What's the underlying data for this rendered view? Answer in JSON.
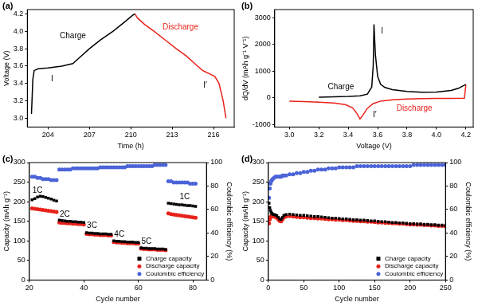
{
  "chart_data": [
    {
      "type": "line",
      "title": "(a)",
      "x_label": "Time (h)",
      "y_label": "Voltage (V)",
      "xlim": [
        202.5,
        217.5
      ],
      "xticks": [
        204,
        207,
        210,
        213,
        216
      ],
      "ylim": [
        2.9,
        4.25
      ],
      "yticks": [
        {
          "value": 3,
          "label": "3.0"
        },
        3.2,
        3.4,
        3.6,
        3.8,
        {
          "value": 4,
          "label": "4.0"
        },
        4.2
      ],
      "grid": false,
      "series": [
        {
          "name": "Charge",
          "color": "#000000",
          "line_style": "solid",
          "x": [
            202.8,
            202.9,
            203.0,
            203.3,
            204,
            205,
            205.8,
            206.3,
            207,
            207.8,
            208.7,
            209.5,
            210.1,
            210.3
          ],
          "values": [
            3.05,
            3.45,
            3.55,
            3.57,
            3.58,
            3.6,
            3.63,
            3.7,
            3.8,
            3.9,
            4.0,
            4.1,
            4.18,
            4.2
          ]
        },
        {
          "name": "Discharge",
          "color": "#e8211a",
          "line_style": "solid",
          "x": [
            210.3,
            210.5,
            211,
            211.7,
            212.5,
            213.3,
            214,
            214.7,
            215.2,
            215.6,
            216.1,
            216.4,
            216.7,
            216.9
          ],
          "values": [
            4.2,
            4.15,
            4.08,
            4.0,
            3.9,
            3.8,
            3.72,
            3.62,
            3.55,
            3.52,
            3.48,
            3.4,
            3.2,
            3.0
          ]
        }
      ],
      "annotations": [
        {
          "text": "Charge",
          "x": 205.8,
          "y": 3.95,
          "color": "#000000"
        },
        {
          "text": "Discharge",
          "x": 213.6,
          "y": 4.05,
          "color": "#e8211a"
        },
        {
          "text": "I",
          "x": 204.3,
          "y": 3.45,
          "color": "#000000"
        },
        {
          "text": "I′",
          "x": 215.4,
          "y": 3.38,
          "color": "#000000"
        }
      ]
    },
    {
      "type": "line",
      "title": "(b)",
      "x_label": "Voltage (V)",
      "y_label": "dQ/dV (mAh g⁻¹ V⁻¹)",
      "xlim": [
        2.9,
        4.25
      ],
      "xticks": [
        {
          "value": 3,
          "label": "3.0"
        },
        3.2,
        3.4,
        3.6,
        3.8,
        {
          "value": 4,
          "label": "4.0"
        },
        4.2
      ],
      "ylim": [
        -1100,
        3300
      ],
      "yticks": [
        -1000,
        0,
        1000,
        2000,
        3000
      ],
      "grid": false,
      "series": [
        {
          "name": "Charge",
          "color": "#000000",
          "line_style": "solid",
          "x": [
            3.2,
            3.3,
            3.4,
            3.48,
            3.53,
            3.56,
            3.57,
            3.575,
            3.585,
            3.6,
            3.62,
            3.65,
            3.7,
            3.8,
            3.9,
            4.0,
            4.1,
            4.15,
            4.2
          ],
          "values": [
            20,
            30,
            45,
            70,
            130,
            400,
            1200,
            2750,
            1600,
            800,
            500,
            380,
            300,
            230,
            200,
            210,
            270,
            350,
            500
          ]
        },
        {
          "name": "Discharge",
          "color": "#e8211a",
          "line_style": "solid",
          "x": [
            4.2,
            4.19,
            4.1,
            4.0,
            3.9,
            3.8,
            3.7,
            3.62,
            3.57,
            3.53,
            3.5,
            3.48,
            3.46,
            3.43,
            3.38,
            3.3,
            3.2,
            3.1,
            3.0
          ],
          "values": [
            480,
            -20,
            -30,
            -30,
            -35,
            -50,
            -80,
            -130,
            -220,
            -400,
            -650,
            -800,
            -600,
            -380,
            -260,
            -200,
            -170,
            -150,
            -130
          ]
        }
      ],
      "annotations": [
        {
          "text": "I",
          "x": 3.63,
          "y": 2500,
          "color": "#000000"
        },
        {
          "text": "I′",
          "x": 3.58,
          "y": -650,
          "color": "#000000"
        },
        {
          "text": "Charge",
          "x": 3.35,
          "y": 400,
          "color": "#000000"
        },
        {
          "text": "Discharge",
          "x": 3.85,
          "y": -400,
          "color": "#e8211a"
        }
      ]
    },
    {
      "type": "scatter",
      "title": "(c)",
      "x_label": "Cycle number",
      "y_label": "Capacity (mAh g⁻¹)",
      "y2_label": "Coulombic efficiency (%)",
      "xlim": [
        20,
        85
      ],
      "xticks": [
        20,
        40,
        60,
        80
      ],
      "ylim": [
        0,
        300
      ],
      "yticks": [
        0,
        50,
        100,
        150,
        200,
        250,
        300
      ],
      "y2lim": [
        0,
        100
      ],
      "y2ticks": [
        0,
        20,
        40,
        60,
        80,
        100
      ],
      "grid": false,
      "legend": "lower right",
      "x": [
        21,
        22,
        23,
        24,
        25,
        26,
        27,
        28,
        29,
        30,
        31,
        32,
        33,
        34,
        35,
        36,
        37,
        38,
        39,
        40,
        41,
        42,
        43,
        44,
        45,
        46,
        47,
        48,
        49,
        50,
        51,
        52,
        53,
        54,
        55,
        56,
        57,
        58,
        59,
        60,
        61,
        62,
        63,
        64,
        65,
        66,
        67,
        68,
        69,
        70,
        71,
        72,
        73,
        74,
        75,
        76,
        77,
        78,
        79,
        80,
        81
      ],
      "series": [
        {
          "name": "Charge capacity",
          "color": "#000000",
          "marker": "square",
          "values": [
            205,
            208,
            212,
            214,
            213,
            211,
            209,
            207,
            204,
            202,
            153,
            152,
            151,
            150,
            150,
            149,
            149,
            148,
            148,
            147,
            121,
            120,
            120,
            119,
            119,
            118,
            118,
            118,
            117,
            117,
            100,
            99,
            99,
            98,
            98,
            97,
            97,
            97,
            96,
            96,
            82,
            81,
            81,
            80,
            80,
            80,
            79,
            79,
            79,
            78,
            196,
            195,
            194,
            193,
            192,
            192,
            191,
            190,
            190,
            189,
            188
          ]
        },
        {
          "name": "Discharge capacity",
          "color": "#e8211a",
          "marker": "circle",
          "values": [
            183,
            182,
            181,
            180,
            179,
            178,
            177,
            176,
            175,
            174,
            147,
            146,
            146,
            145,
            145,
            144,
            144,
            143,
            143,
            142,
            118,
            117,
            117,
            116,
            116,
            115,
            115,
            115,
            114,
            114,
            97,
            96,
            96,
            95,
            95,
            94,
            94,
            94,
            93,
            93,
            80,
            79,
            79,
            78,
            78,
            78,
            77,
            77,
            77,
            76,
            170,
            168,
            167,
            166,
            165,
            164,
            163,
            162,
            161,
            160,
            159
          ]
        },
        {
          "name": "Coulombic efficiency",
          "color": "#4a63d8",
          "marker": "circle",
          "axis": "y2",
          "values": [
            88,
            88,
            87,
            87,
            86,
            86,
            86,
            85,
            85,
            85,
            94,
            94,
            94,
            94,
            94,
            95,
            95,
            95,
            95,
            95,
            95,
            95,
            95,
            95,
            95,
            96,
            96,
            96,
            96,
            96,
            96,
            96,
            96,
            96,
            96,
            97,
            97,
            97,
            97,
            97,
            97,
            97,
            97,
            97,
            97,
            98,
            98,
            98,
            98,
            98,
            84,
            84,
            83,
            83,
            83,
            83,
            83,
            83,
            82,
            82,
            82
          ]
        }
      ],
      "annotations": [
        {
          "text": "1C",
          "x": 23,
          "y": 228,
          "color": "#000000"
        },
        {
          "text": "2C",
          "x": 33,
          "y": 168,
          "color": "#000000"
        },
        {
          "text": "3C",
          "x": 43,
          "y": 138,
          "color": "#000000"
        },
        {
          "text": "4C",
          "x": 53,
          "y": 116,
          "color": "#000000"
        },
        {
          "text": "5C",
          "x": 63,
          "y": 98,
          "color": "#000000"
        },
        {
          "text": "1C",
          "x": 77,
          "y": 212,
          "color": "#000000"
        }
      ]
    },
    {
      "type": "scatter",
      "title": "(d)",
      "x_label": "Cycle number",
      "y_label": "Capacity (mAh g⁻¹)",
      "y2_label": "Coulombic efficiency (%)",
      "xlim": [
        0,
        250
      ],
      "xticks": [
        0,
        50,
        100,
        150,
        200,
        250
      ],
      "ylim": [
        0,
        300
      ],
      "yticks": [
        0,
        50,
        100,
        150,
        200,
        250,
        300
      ],
      "y2lim": [
        0,
        100
      ],
      "y2ticks": [
        0,
        20,
        40,
        60,
        80,
        100
      ],
      "grid": false,
      "legend": "lower right",
      "x": [
        1,
        2,
        3,
        4,
        5,
        6,
        8,
        10,
        12,
        14,
        16,
        18,
        20,
        22,
        25,
        30,
        35,
        40,
        45,
        50,
        55,
        60,
        65,
        70,
        75,
        80,
        85,
        90,
        95,
        100,
        105,
        110,
        115,
        120,
        125,
        130,
        135,
        140,
        145,
        150,
        155,
        160,
        165,
        170,
        175,
        180,
        185,
        190,
        195,
        200,
        205,
        210,
        215,
        220,
        225,
        230,
        235,
        240,
        245,
        250
      ],
      "series": [
        {
          "name": "Charge capacity",
          "color": "#000000",
          "marker": "square",
          "values": [
            196,
            185,
            178,
            173,
            170,
            168,
            167,
            166,
            164,
            160,
            156,
            155,
            160,
            165,
            167,
            168,
            167,
            166,
            165,
            165,
            164,
            163,
            162,
            162,
            161,
            160,
            159,
            158,
            158,
            157,
            156,
            156,
            155,
            154,
            154,
            153,
            153,
            152,
            151,
            151,
            150,
            149,
            149,
            148,
            147,
            147,
            146,
            146,
            145,
            144,
            144,
            143,
            143,
            142,
            142,
            141,
            141,
            140,
            140,
            139
          ]
        },
        {
          "name": "Discharge capacity",
          "color": "#e8211a",
          "marker": "circle",
          "values": [
            145,
            155,
            160,
            163,
            164,
            163,
            162,
            161,
            159,
            155,
            151,
            150,
            155,
            160,
            162,
            163,
            162,
            161,
            160,
            160,
            159,
            158,
            158,
            157,
            157,
            156,
            155,
            155,
            154,
            154,
            153,
            153,
            152,
            151,
            151,
            150,
            150,
            149,
            149,
            148,
            147,
            147,
            146,
            146,
            145,
            145,
            144,
            144,
            143,
            142,
            142,
            141,
            141,
            140,
            140,
            139,
            139,
            138,
            138,
            137
          ]
        },
        {
          "name": "Coulombic efficiency",
          "color": "#4a63d8",
          "marker": "circle",
          "axis": "y2",
          "values": [
            70,
            78,
            82,
            84,
            85,
            86,
            87,
            88,
            88,
            88,
            88,
            88,
            89,
            89,
            89,
            90,
            90,
            91,
            91,
            92,
            92,
            93,
            93,
            94,
            94,
            94,
            95,
            95,
            95,
            96,
            96,
            96,
            96,
            96,
            97,
            97,
            97,
            97,
            97,
            97,
            97,
            97,
            97,
            97,
            97,
            97,
            97,
            97,
            97,
            97,
            98,
            98,
            98,
            98,
            98,
            98,
            98,
            98,
            98,
            98
          ]
        }
      ]
    }
  ]
}
